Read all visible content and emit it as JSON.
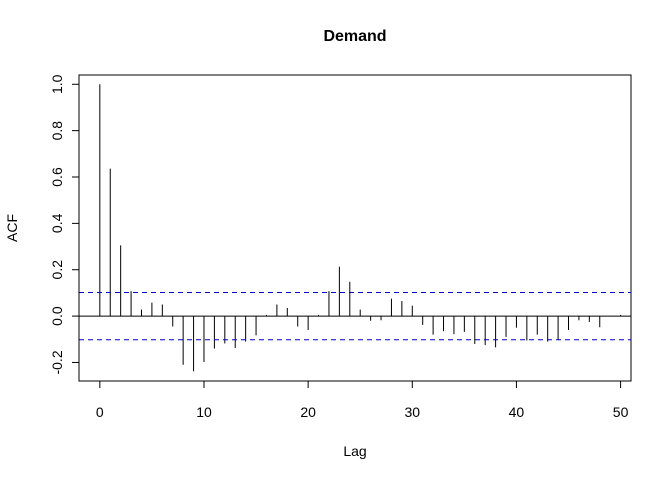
{
  "chart_data": {
    "type": "bar",
    "title": "Demand",
    "xlabel": "Lag",
    "ylabel": "ACF",
    "xlim": [
      -2,
      51
    ],
    "ylim": [
      -0.28,
      1.04
    ],
    "x_ticks": [
      0,
      10,
      20,
      30,
      40,
      50
    ],
    "x_tick_labels": [
      "0",
      "10",
      "20",
      "30",
      "40",
      "50"
    ],
    "y_ticks": [
      -0.2,
      0.0,
      0.2,
      0.4,
      0.6,
      0.8,
      1.0
    ],
    "y_tick_labels": [
      "-0.2",
      "0.0",
      "0.2",
      "0.4",
      "0.6",
      "0.8",
      "1.0"
    ],
    "confidence_bound": 0.102,
    "zero_line": 0,
    "grid": false,
    "colors": {
      "bars": "#000000",
      "bounds": "#0000cc",
      "frame": "#000000"
    },
    "series": [
      {
        "lags": [
          0,
          1,
          2,
          3,
          4,
          5,
          6,
          7,
          8,
          9,
          10,
          11,
          12,
          13,
          14,
          15,
          16,
          17,
          18,
          19,
          20,
          21,
          22,
          23,
          24,
          25,
          26,
          27,
          28,
          29,
          30,
          31,
          32,
          33,
          34,
          35,
          36,
          37,
          38,
          39,
          40,
          41,
          42,
          43,
          44,
          45,
          46,
          47,
          48,
          49,
          50
        ],
        "values": [
          1.0,
          0.636,
          0.305,
          0.108,
          0.028,
          0.058,
          0.05,
          -0.045,
          -0.21,
          -0.238,
          -0.198,
          -0.14,
          -0.118,
          -0.138,
          -0.11,
          -0.083,
          0.005,
          0.05,
          0.035,
          -0.045,
          -0.06,
          0.005,
          0.108,
          0.213,
          0.148,
          0.028,
          -0.02,
          -0.018,
          0.075,
          0.065,
          0.045,
          -0.038,
          -0.08,
          -0.065,
          -0.078,
          -0.068,
          -0.12,
          -0.125,
          -0.135,
          -0.09,
          -0.05,
          -0.105,
          -0.08,
          -0.11,
          -0.103,
          -0.06,
          -0.018,
          -0.025,
          -0.048,
          0.0,
          0.005
        ]
      }
    ]
  }
}
